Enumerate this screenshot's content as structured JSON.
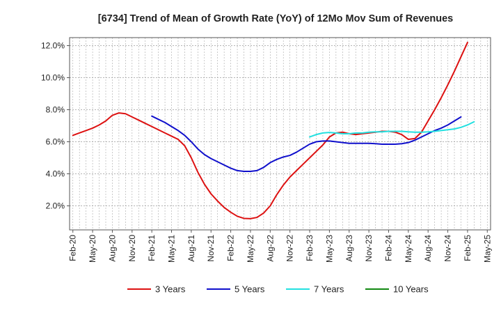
{
  "chart_data": {
    "type": "line",
    "title": "[6734]  Trend of Mean of Growth Rate (YoY) of 12Mo Mov Sum of Revenues",
    "xlabel": "",
    "ylabel": "",
    "ylim": [
      0.5,
      12.5
    ],
    "y_ticks": [
      2.0,
      4.0,
      6.0,
      8.0,
      10.0,
      12.0
    ],
    "y_tick_labels": [
      "2.0%",
      "4.0%",
      "6.0%",
      "8.0%",
      "10.0%",
      "12.0%"
    ],
    "x_tick_labels": [
      "Feb-20",
      "May-20",
      "Aug-20",
      "Nov-20",
      "Feb-21",
      "May-21",
      "Aug-21",
      "Nov-21",
      "Feb-22",
      "May-22",
      "Aug-22",
      "Nov-22",
      "Feb-23",
      "May-23",
      "Aug-23",
      "Nov-23",
      "Feb-24",
      "May-24",
      "Aug-24",
      "Nov-24",
      "Feb-25",
      "May-25"
    ],
    "x_start_month": "Feb-20",
    "x_month_count": 64,
    "grid": true,
    "legend_position": "bottom",
    "series": [
      {
        "name": "3 Years",
        "color": "#dd1111",
        "start_index": 0,
        "values": [
          6.4,
          6.55,
          6.7,
          6.85,
          7.05,
          7.3,
          7.65,
          7.8,
          7.75,
          7.55,
          7.35,
          7.15,
          6.95,
          6.75,
          6.55,
          6.35,
          6.15,
          5.75,
          5.0,
          4.1,
          3.35,
          2.75,
          2.3,
          1.9,
          1.6,
          1.35,
          1.22,
          1.2,
          1.28,
          1.55,
          2.0,
          2.7,
          3.3,
          3.8,
          4.2,
          4.6,
          5.0,
          5.4,
          5.8,
          6.3,
          6.55,
          6.6,
          6.5,
          6.45,
          6.5,
          6.55,
          6.6,
          6.65,
          6.65,
          6.6,
          6.45,
          6.15,
          6.2,
          6.6,
          7.3,
          8.0,
          8.75,
          9.55,
          10.4,
          11.3,
          12.2
        ]
      },
      {
        "name": "5 Years",
        "color": "#1010cc",
        "start_index": 12,
        "values": [
          7.6,
          7.4,
          7.2,
          6.95,
          6.7,
          6.4,
          6.0,
          5.55,
          5.2,
          4.95,
          4.75,
          4.55,
          4.35,
          4.2,
          4.15,
          4.15,
          4.2,
          4.4,
          4.7,
          4.9,
          5.05,
          5.15,
          5.35,
          5.6,
          5.85,
          6.0,
          6.05,
          6.05,
          6.0,
          5.95,
          5.9,
          5.9,
          5.9,
          5.9,
          5.88,
          5.85,
          5.85,
          5.85,
          5.88,
          5.95,
          6.1,
          6.3,
          6.5,
          6.7,
          6.85,
          7.05,
          7.3,
          7.55
        ]
      },
      {
        "name": "7 Years",
        "color": "#22e0e0",
        "start_index": 36,
        "values": [
          6.3,
          6.45,
          6.55,
          6.58,
          6.55,
          6.5,
          6.5,
          6.55,
          6.55,
          6.6,
          6.62,
          6.62,
          6.65,
          6.65,
          6.65,
          6.62,
          6.6,
          6.6,
          6.62,
          6.65,
          6.7,
          6.75,
          6.8,
          6.9,
          7.05,
          7.25
        ]
      },
      {
        "name": "10 Years",
        "color": "#118811",
        "start_index": 0,
        "values": []
      }
    ]
  }
}
